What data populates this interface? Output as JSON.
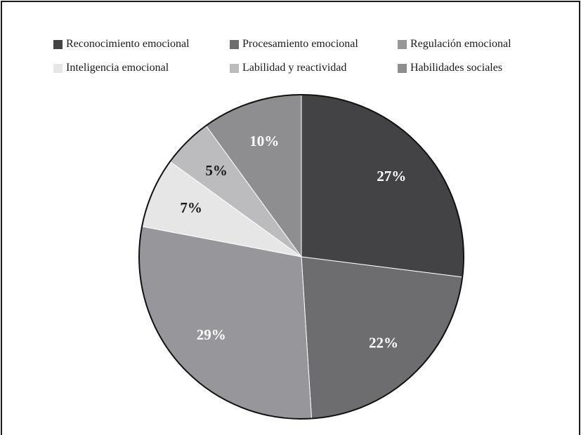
{
  "chart_data": {
    "type": "pie",
    "title": "",
    "legend_position": "top",
    "slices": [
      {
        "name": "Reconocimiento emocional",
        "value": 27,
        "label": "27%",
        "color": "#434244",
        "label_color": "#ffffff"
      },
      {
        "name": "Procesamiento emocional",
        "value": 22,
        "label": "22%",
        "color": "#6d6c6f",
        "label_color": "#ffffff"
      },
      {
        "name": "Regulación emocional",
        "value": 29,
        "label": "29%",
        "color": "#97969a",
        "label_color": "#ffffff"
      },
      {
        "name": "Inteligencia emocional",
        "value": 7,
        "label": "7%",
        "color": "#e6e6e7",
        "label_color": "#1a1a1a"
      },
      {
        "name": "Labilidad y reactividad",
        "value": 5,
        "label": "5%",
        "color": "#bcbbbe",
        "label_color": "#1a1a1a"
      },
      {
        "name": "Habilidades sociales",
        "value": 10,
        "label": "10%",
        "color": "#8e8d90",
        "label_color": "#ffffff"
      }
    ]
  }
}
